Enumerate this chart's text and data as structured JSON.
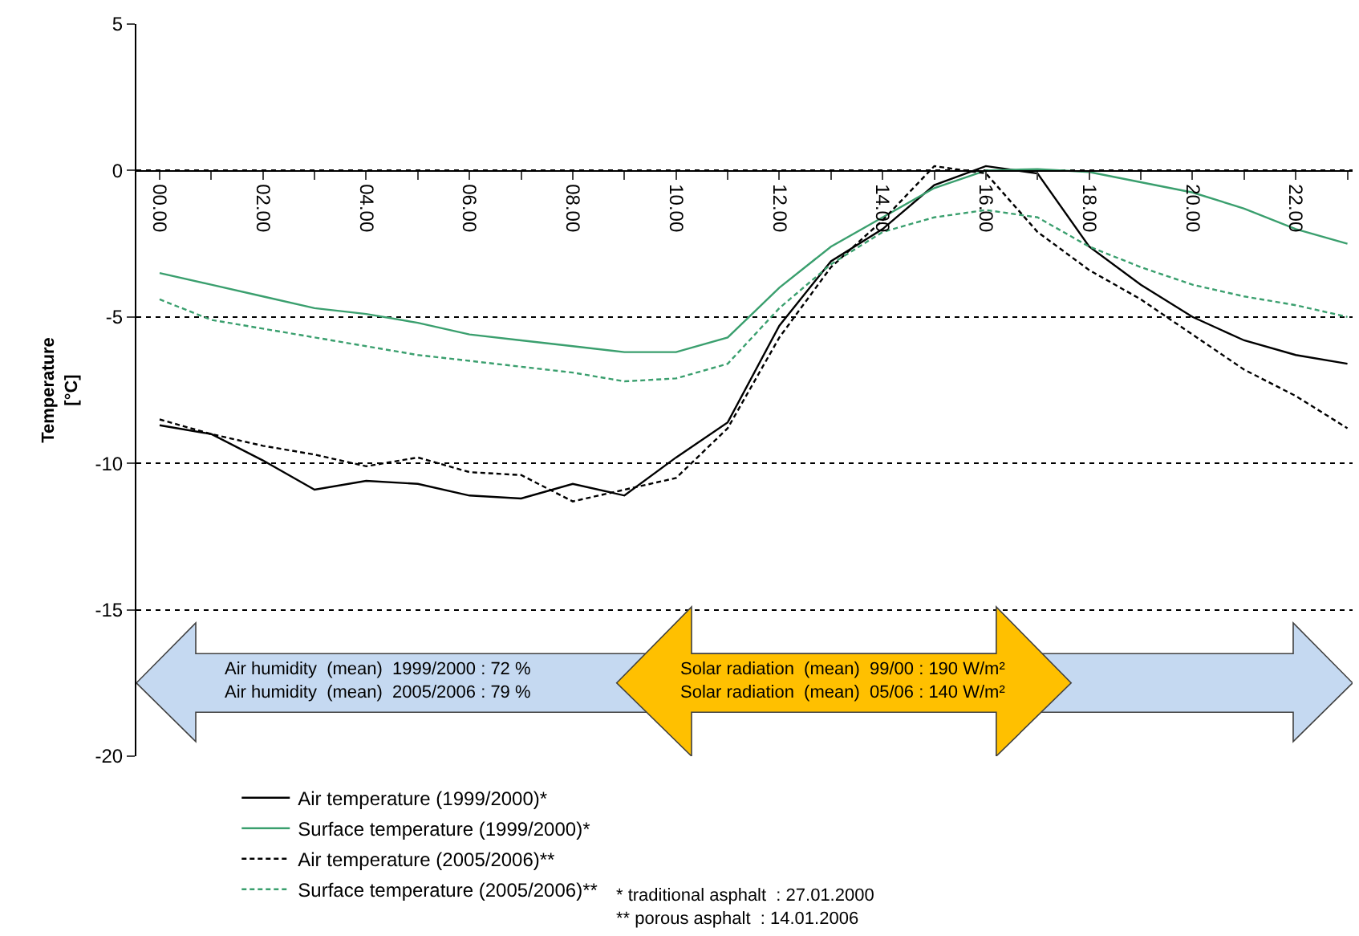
{
  "chart_data": {
    "type": "line",
    "ylabel": "Temperature\n[°C]",
    "x": [
      0,
      1,
      2,
      3,
      4,
      5,
      6,
      7,
      8,
      9,
      10,
      11,
      12,
      13,
      14,
      15,
      16,
      17,
      18,
      19,
      20,
      21,
      22,
      23
    ],
    "xlim": [
      -0.45,
      23.1
    ],
    "xticks": [
      {
        "value": 0,
        "label": "00.00"
      },
      {
        "value": 1,
        "label": null
      },
      {
        "value": 2,
        "label": "02.00"
      },
      {
        "value": 3,
        "label": null
      },
      {
        "value": 4,
        "label": "04.00"
      },
      {
        "value": 5,
        "label": null
      },
      {
        "value": 6,
        "label": "06.00"
      },
      {
        "value": 7,
        "label": null
      },
      {
        "value": 8,
        "label": "08.00"
      },
      {
        "value": 9,
        "label": null
      },
      {
        "value": 10,
        "label": "10.00"
      },
      {
        "value": 11,
        "label": null
      },
      {
        "value": 12,
        "label": "12.00"
      },
      {
        "value": 13,
        "label": null
      },
      {
        "value": 14,
        "label": "14.00"
      },
      {
        "value": 15,
        "label": null
      },
      {
        "value": 16,
        "label": "16.00"
      },
      {
        "value": 17,
        "label": null
      },
      {
        "value": 18,
        "label": "18.00"
      },
      {
        "value": 19,
        "label": null
      },
      {
        "value": 20,
        "label": "20.00"
      },
      {
        "value": 21,
        "label": null
      },
      {
        "value": 22,
        "label": "22.00"
      },
      {
        "value": 23,
        "label": null
      }
    ],
    "ylim": [
      -20,
      5
    ],
    "yticks": [
      -20,
      -15,
      -10,
      -5,
      0,
      5
    ],
    "grid": "y",
    "legend": "bottom",
    "marker": "none",
    "series": [
      {
        "name": "Air temperature (1999/2000)*",
        "color": "#000000",
        "line_style": "solid",
        "values": [
          -8.7,
          -9.0,
          -9.9,
          -10.9,
          -10.6,
          -10.7,
          -11.1,
          -11.2,
          -10.7,
          -11.1,
          -9.8,
          -8.6,
          -5.3,
          -3.1,
          -2.0,
          -0.5,
          0.15,
          -0.1,
          -2.6,
          -3.9,
          -5.0,
          -5.8,
          -6.3,
          -6.6
        ]
      },
      {
        "name": "Surface temperature (1999/2000)*",
        "color": "#3a9f6e",
        "line_style": "solid",
        "values": [
          -3.5,
          -3.9,
          -4.3,
          -4.7,
          -4.9,
          -5.2,
          -5.6,
          -5.8,
          -6.0,
          -6.2,
          -6.2,
          -5.7,
          -4.0,
          -2.6,
          -1.6,
          -0.6,
          0.0,
          0.05,
          -0.05,
          -0.4,
          -0.75,
          -1.3,
          -2.0,
          -2.5
        ]
      },
      {
        "name": "Air temperature (2005/2006)**",
        "color": "#000000",
        "line_style": "dashed",
        "values": [
          -8.5,
          -9.0,
          -9.4,
          -9.7,
          -10.1,
          -9.8,
          -10.3,
          -10.4,
          -11.3,
          -10.9,
          -10.5,
          -8.8,
          -5.7,
          -3.3,
          -1.7,
          0.15,
          -0.1,
          -2.1,
          -3.4,
          -4.4,
          -5.6,
          -6.8,
          -7.7,
          -8.8
        ]
      },
      {
        "name": "Surface temperature (2005/2006)**",
        "color": "#3a9f6e",
        "line_style": "dashed",
        "values": [
          -4.4,
          -5.1,
          -5.4,
          -5.7,
          -6.0,
          -6.3,
          -6.5,
          -6.7,
          -6.9,
          -7.2,
          -7.1,
          -6.6,
          -4.7,
          -3.2,
          -2.1,
          -1.6,
          -1.35,
          -1.6,
          -2.6,
          -3.3,
          -3.9,
          -4.3,
          -4.6,
          -5.0
        ]
      }
    ],
    "annotations": [
      "Air humidity  (mean)  1999/2000 : 72 %\nAir humidity  (mean)  2005/2006 : 79 %",
      "Solar radiation  (mean)  99/00 : 190 W/m²\nSolar radiation  (mean)  05/06 : 140 W/m²",
      "* traditional asphalt  : 27.01.2000\n** porous asphalt  : 14.01.2006"
    ]
  }
}
